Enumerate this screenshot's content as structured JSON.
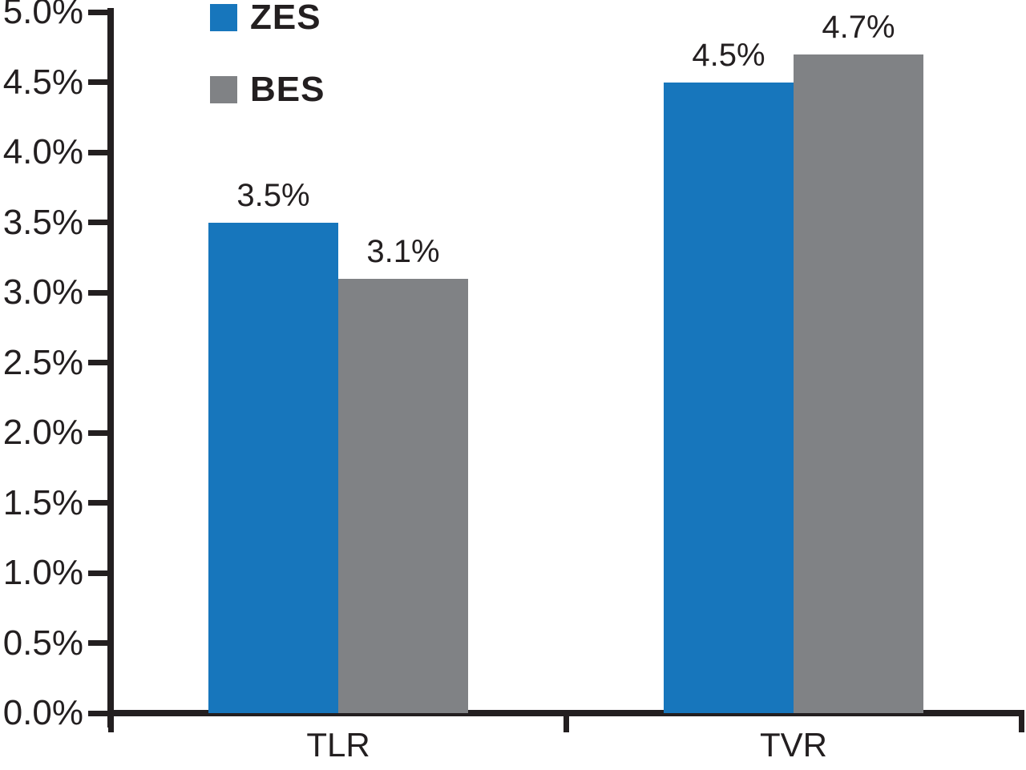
{
  "chart_data": {
    "type": "bar",
    "title": "",
    "xlabel": "",
    "ylabel": "",
    "categories": [
      "TLR",
      "TVR"
    ],
    "series": [
      {
        "name": "ZES",
        "color": "#1776BC",
        "values": [
          3.5,
          4.5
        ],
        "labels": [
          "3.5%",
          "4.5%"
        ]
      },
      {
        "name": "BES",
        "color": "#808285",
        "values": [
          3.1,
          4.7
        ],
        "labels": [
          "3.1%",
          "4.7%"
        ]
      }
    ],
    "y_axis": {
      "min": 0,
      "max": 5,
      "step": 0.5,
      "tick_labels": [
        "0.0%",
        "0.5%",
        "1.0%",
        "1.5%",
        "2.0%",
        "2.5%",
        "3.0%",
        "3.5%",
        "4.0%",
        "4.5%",
        "5.0%"
      ]
    },
    "legend": {
      "position": "top-left",
      "entries": [
        "ZES",
        "BES"
      ]
    },
    "grid": "off",
    "colors": {
      "axis": "#231f20",
      "text": "#231f20",
      "background": "#ffffff"
    }
  }
}
